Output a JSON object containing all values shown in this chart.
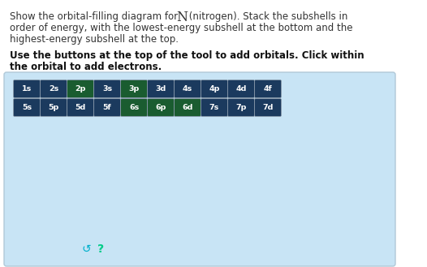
{
  "row1": [
    "1s",
    "2s",
    "2p",
    "3s",
    "3p",
    "3d",
    "4s",
    "4p",
    "4d",
    "4f"
  ],
  "row2": [
    "5s",
    "5p",
    "5d",
    "5f",
    "6s",
    "6p",
    "6d",
    "7s",
    "7p",
    "7d"
  ],
  "dark_green_labels": [
    "2p",
    "3p",
    "6s",
    "6p",
    "6d"
  ],
  "dark_blue_color": "#1b3a5e",
  "dark_green_color": "#1a5c30",
  "outer_bg": "#ffffff",
  "panel_bg": "#c8e4f5",
  "panel_border": "#b0c8d8",
  "icon_color": "#00b0cc",
  "question_color": "#00cc88",
  "title_color": "#333333",
  "bold_color": "#111111",
  "figsize": [
    5.26,
    3.29
  ],
  "dpi": 100,
  "line1a": "Show the orbital-filling diagram for ",
  "line1b": "N",
  "line1c": " (nitrogen). Stack the subshells in",
  "line2": "order of energy, with the lowest-energy subshell at the bottom and the",
  "line3": "highest-energy subshell at the top.",
  "bold1": "Use the buttons at the top of the tool to add orbitals. Click within",
  "bold2": "the orbital to add electrons."
}
